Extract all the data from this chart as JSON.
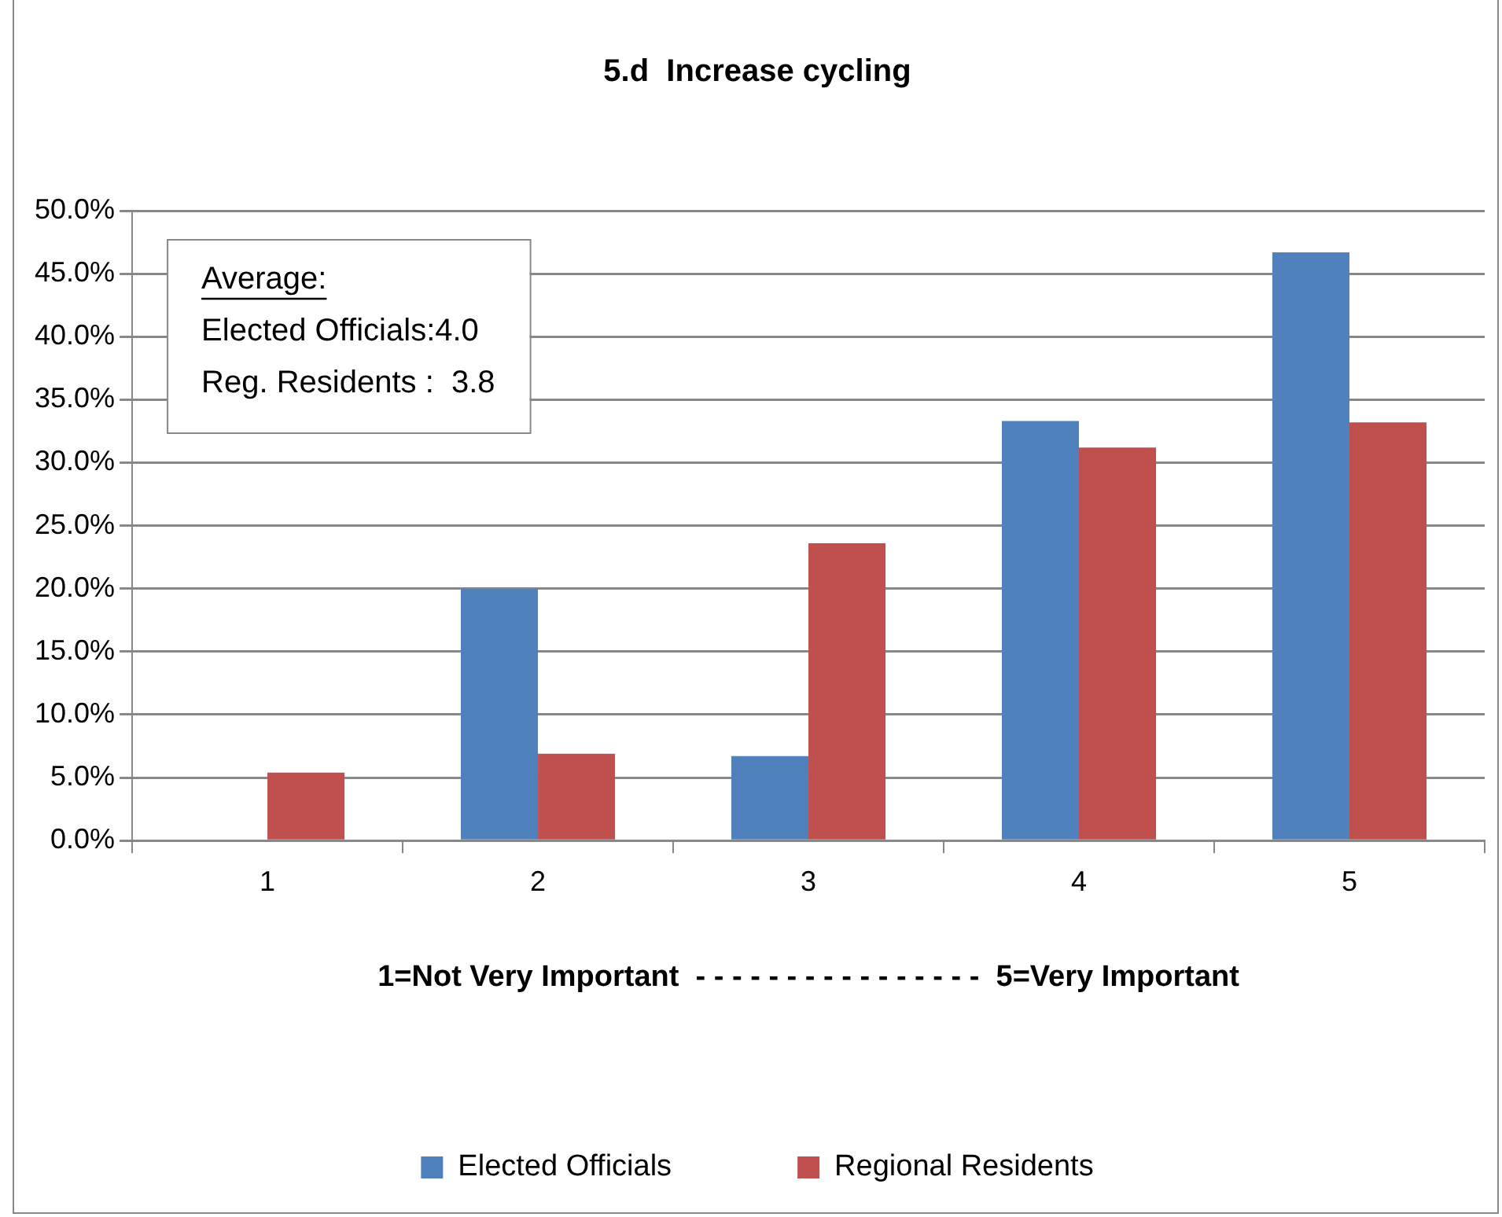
{
  "chart_data": {
    "type": "bar",
    "title": "5.d  Increase cycling",
    "xlabel": "1=Not Very Important  - - - - - - - - - - - - - - - -  5=Very Important",
    "categories": [
      "1",
      "2",
      "3",
      "4",
      "5"
    ],
    "series": [
      {
        "name": "Elected Officials",
        "color": "#4f81bd",
        "values": [
          0,
          20.0,
          6.7,
          33.3,
          46.7
        ]
      },
      {
        "name": "Regional Residents",
        "color": "#c0504d",
        "values": [
          5.4,
          6.9,
          23.6,
          31.2,
          33.2
        ]
      }
    ],
    "ylim": [
      0,
      50
    ],
    "yticks": [
      {
        "value": 0,
        "label": "0.0%"
      },
      {
        "value": 5,
        "label": "5.0%"
      },
      {
        "value": 10,
        "label": "10.0%"
      },
      {
        "value": 15,
        "label": "15.0%"
      },
      {
        "value": 20,
        "label": "20.0%"
      },
      {
        "value": 25,
        "label": "25.0%"
      },
      {
        "value": 30,
        "label": "30.0%"
      },
      {
        "value": 35,
        "label": "35.0%"
      },
      {
        "value": 40,
        "label": "40.0%"
      },
      {
        "value": 45,
        "label": "45.0%"
      },
      {
        "value": 50,
        "label": "50.0%"
      }
    ],
    "annotations": [
      "Average:",
      "Elected Officials:4.0",
      "Reg. Residents :  3.8"
    ],
    "grid": "y",
    "legend": "bottom"
  }
}
